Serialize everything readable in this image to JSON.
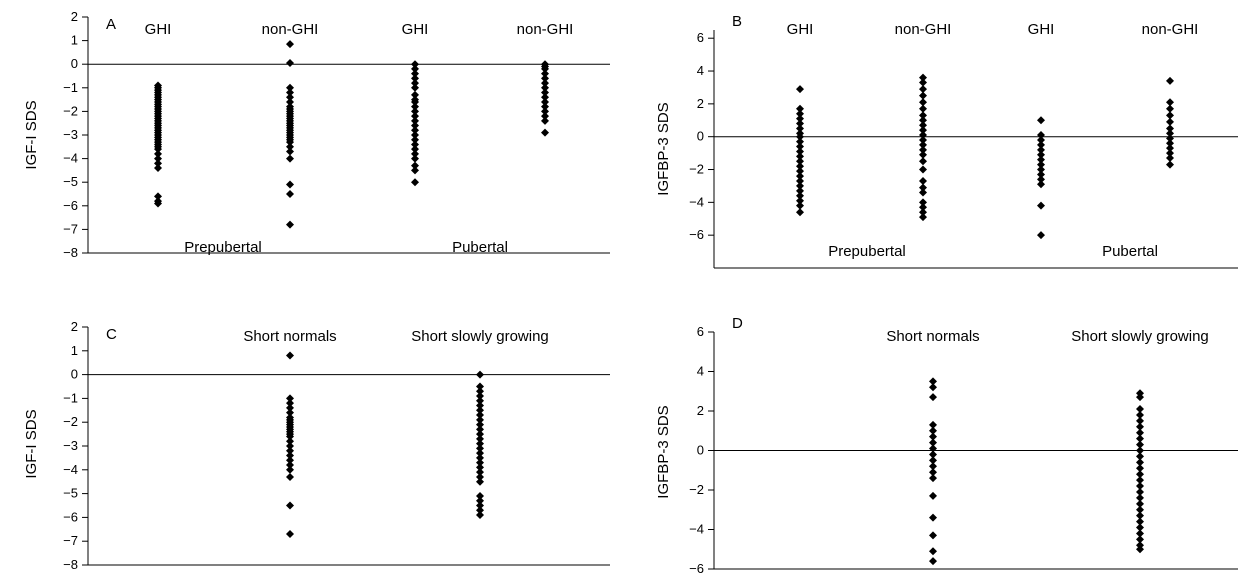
{
  "chart_data": [
    {
      "panel": "A",
      "type": "scatter",
      "ylabel": "IGF-I SDS",
      "ylim": [
        -8,
        2
      ],
      "yticks": [
        "2",
        "1",
        "0",
        "−1",
        "−2",
        "−3",
        "−4",
        "−5",
        "−6",
        "−7",
        "−8"
      ],
      "reference_line": 0,
      "group_labels": [
        "GHI",
        "non-GHI",
        "GHI",
        "non-GHI"
      ],
      "section_labels": [
        "Prepubertal",
        "Pubertal"
      ],
      "series": [
        {
          "values": [
            -0.9,
            -1.0,
            -1.1,
            -1.2,
            -1.3,
            -1.4,
            -1.5,
            -1.6,
            -1.7,
            -1.8,
            -1.9,
            -2.0,
            -2.1,
            -2.2,
            -2.3,
            -2.4,
            -2.5,
            -2.6,
            -2.7,
            -2.8,
            -2.9,
            -3.0,
            -3.1,
            -3.2,
            -3.3,
            -3.4,
            -3.5,
            -3.6,
            -3.8,
            -4.0,
            -4.2,
            -4.4,
            -5.6,
            -5.8,
            -5.9
          ]
        },
        {
          "values": [
            0.85,
            0.05,
            -1.0,
            -1.2,
            -1.4,
            -1.6,
            -1.8,
            -1.9,
            -2.0,
            -2.1,
            -2.2,
            -2.3,
            -2.4,
            -2.5,
            -2.6,
            -2.7,
            -2.8,
            -2.9,
            -3.0,
            -3.1,
            -3.2,
            -3.3,
            -3.5,
            -3.7,
            -4.0,
            -5.1,
            -5.5,
            -6.8
          ]
        },
        {
          "values": [
            0.0,
            -0.2,
            -0.4,
            -0.6,
            -0.8,
            -1.0,
            -1.3,
            -1.5,
            -1.6,
            -1.8,
            -2.0,
            -2.2,
            -2.4,
            -2.6,
            -2.8,
            -3.0,
            -3.2,
            -3.4,
            -3.6,
            -3.8,
            -4.0,
            -4.3,
            -4.5,
            -5.0
          ]
        },
        {
          "values": [
            0.0,
            -0.1,
            -0.2,
            -0.4,
            -0.6,
            -0.8,
            -1.0,
            -1.2,
            -1.4,
            -1.6,
            -1.8,
            -2.0,
            -2.2,
            -2.4,
            -2.9
          ]
        }
      ]
    },
    {
      "panel": "B",
      "type": "scatter",
      "ylabel": "IGFBP-3 SDS",
      "ylim": [
        -8,
        6.5
      ],
      "yticks": [
        "6",
        "4",
        "2",
        "0",
        "−2",
        "−4",
        "−6"
      ],
      "reference_line": 0,
      "group_labels": [
        "GHI",
        "non-GHI",
        "GHI",
        "non-GHI"
      ],
      "section_labels": [
        "Prepubertal",
        "Pubertal"
      ],
      "series": [
        {
          "values": [
            2.9,
            1.7,
            1.4,
            1.1,
            0.8,
            0.5,
            0.2,
            0.0,
            -0.3,
            -0.6,
            -0.9,
            -1.2,
            -1.5,
            -1.8,
            -2.1,
            -2.4,
            -2.7,
            -3.0,
            -3.3,
            -3.6,
            -3.9,
            -4.2,
            -4.6
          ]
        },
        {
          "values": [
            3.6,
            3.3,
            2.9,
            2.5,
            2.1,
            1.7,
            1.3,
            1.0,
            0.7,
            0.4,
            0.1,
            -0.2,
            -0.5,
            -0.8,
            -1.1,
            -1.5,
            -2.0,
            -2.7,
            -3.1,
            -3.4,
            -4.0,
            -4.3,
            -4.6,
            -4.9
          ]
        },
        {
          "values": [
            1.0,
            0.1,
            -0.2,
            -0.5,
            -0.8,
            -1.1,
            -1.4,
            -1.7,
            -2.0,
            -2.3,
            -2.6,
            -2.9,
            -4.2,
            -6.0
          ]
        },
        {
          "values": [
            3.4,
            2.1,
            1.7,
            1.3,
            0.9,
            0.5,
            0.2,
            -0.1,
            -0.4,
            -0.7,
            -1.0,
            -1.3,
            -1.7
          ]
        }
      ]
    },
    {
      "panel": "C",
      "type": "scatter",
      "ylabel": "IGF-I SDS",
      "ylim": [
        -8,
        2
      ],
      "yticks": [
        "2",
        "1",
        "0",
        "−1",
        "−2",
        "−3",
        "−4",
        "−5",
        "−6",
        "−7",
        "−8"
      ],
      "reference_line": 0,
      "group_labels": [
        "Short normals",
        "Short slowly growing"
      ],
      "section_labels": [],
      "series": [
        {
          "values": [
            0.8,
            -1.0,
            -1.2,
            -1.4,
            -1.6,
            -1.8,
            -1.9,
            -2.0,
            -2.1,
            -2.2,
            -2.3,
            -2.4,
            -2.5,
            -2.6,
            -2.8,
            -3.0,
            -3.2,
            -3.4,
            -3.6,
            -3.8,
            -4.0,
            -4.3,
            -5.5,
            -6.7
          ]
        },
        {
          "values": [
            0.0,
            -0.5,
            -0.7,
            -0.9,
            -1.1,
            -1.3,
            -1.5,
            -1.7,
            -1.9,
            -2.1,
            -2.3,
            -2.5,
            -2.7,
            -2.9,
            -3.1,
            -3.3,
            -3.5,
            -3.7,
            -3.9,
            -4.1,
            -4.3,
            -4.5,
            -5.1,
            -5.3,
            -5.5,
            -5.7,
            -5.9
          ]
        }
      ]
    },
    {
      "panel": "D",
      "type": "scatter",
      "ylabel": "IGFBP-3 SDS",
      "ylim": [
        -6,
        6
      ],
      "yticks": [
        "6",
        "4",
        "2",
        "0",
        "−2",
        "−4",
        "−6"
      ],
      "reference_line": 0,
      "group_labels": [
        "Short normals",
        "Short slowly growing"
      ],
      "section_labels": [],
      "series": [
        {
          "values": [
            3.5,
            3.2,
            2.7,
            1.3,
            1.0,
            0.7,
            0.4,
            0.1,
            -0.2,
            -0.5,
            -0.8,
            -1.1,
            -1.4,
            -2.3,
            -3.4,
            -4.3,
            -5.1,
            -5.6
          ]
        },
        {
          "values": [
            2.9,
            2.7,
            2.1,
            1.8,
            1.5,
            1.2,
            0.9,
            0.6,
            0.3,
            0.0,
            -0.3,
            -0.6,
            -0.9,
            -1.2,
            -1.5,
            -1.8,
            -2.1,
            -2.4,
            -2.7,
            -3.0,
            -3.3,
            -3.6,
            -3.9,
            -4.2,
            -4.5,
            -4.8,
            -5.0
          ]
        }
      ]
    }
  ]
}
